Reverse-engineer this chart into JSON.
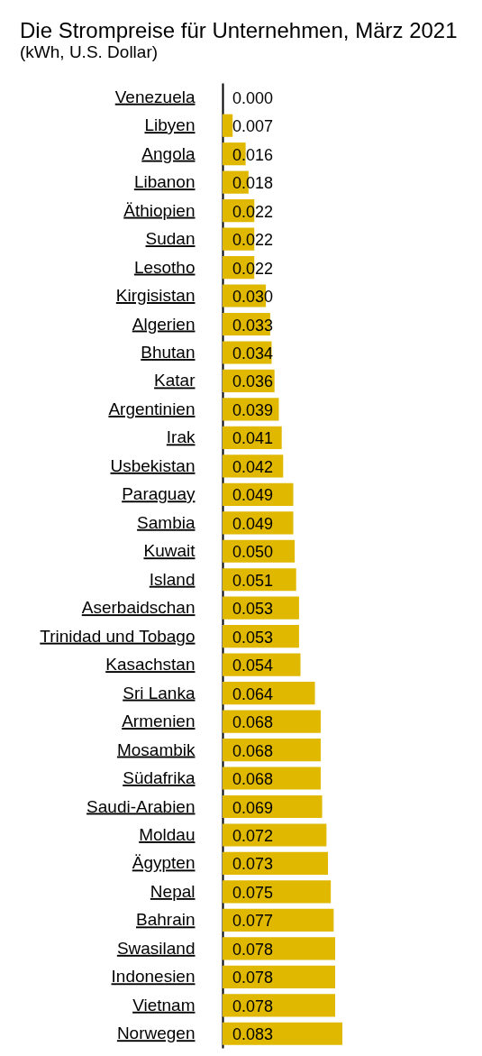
{
  "chart_data": {
    "type": "bar",
    "orientation": "horizontal",
    "title": "Die Strompreise für Unternehmen, März 2021",
    "subtitle": "(kWh, U.S. Dollar)",
    "categories": [
      "Venezuela",
      "Libyen",
      "Angola",
      "Libanon",
      "Äthiopien",
      "Sudan",
      "Lesotho",
      "Kirgisistan",
      "Algerien",
      "Bhutan",
      "Katar",
      "Argentinien",
      "Irak",
      "Usbekistan",
      "Paraguay",
      "Sambia",
      "Kuwait",
      "Island",
      "Aserbaidschan",
      "Trinidad und Tobago",
      "Kasachstan",
      "Sri Lanka",
      "Armenien",
      "Mosambik",
      "Südafrika",
      "Saudi-Arabien",
      "Moldau",
      "Ägypten",
      "Nepal",
      "Bahrain",
      "Swasiland",
      "Indonesien",
      "Vietnam",
      "Norwegen"
    ],
    "values": [
      0.0,
      0.007,
      0.016,
      0.018,
      0.022,
      0.022,
      0.022,
      0.03,
      0.033,
      0.034,
      0.036,
      0.039,
      0.041,
      0.042,
      0.049,
      0.049,
      0.05,
      0.051,
      0.053,
      0.053,
      0.054,
      0.064,
      0.068,
      0.068,
      0.068,
      0.069,
      0.072,
      0.073,
      0.075,
      0.077,
      0.078,
      0.078,
      0.078,
      0.083
    ],
    "value_labels": [
      "0.000",
      "0.007",
      "0.016",
      "0.018",
      "0.022",
      "0.022",
      "0.022",
      "0.030",
      "0.033",
      "0.034",
      "0.036",
      "0.039",
      "0.041",
      "0.042",
      "0.049",
      "0.049",
      "0.050",
      "0.051",
      "0.053",
      "0.053",
      "0.054",
      "0.064",
      "0.068",
      "0.068",
      "0.068",
      "0.069",
      "0.072",
      "0.073",
      "0.075",
      "0.077",
      "0.078",
      "0.078",
      "0.078",
      "0.083"
    ],
    "color": "#e0b800"
  }
}
